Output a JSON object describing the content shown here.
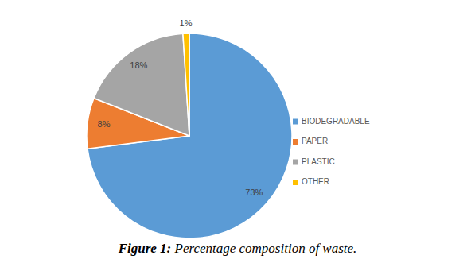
{
  "chart_data": {
    "type": "pie",
    "categories": [
      "BIODEGRADABLE",
      "PAPER",
      "PLASTIC",
      "OTHER"
    ],
    "values": [
      73,
      8,
      18,
      1
    ],
    "value_labels": [
      "73%",
      "8%",
      "18%",
      "1%"
    ],
    "colors": [
      "#5b9bd5",
      "#ed7d31",
      "#a5a5a5",
      "#ffc000"
    ],
    "data_labels": true,
    "legend": "right"
  },
  "caption": {
    "label": "Figure 1:",
    "text": "Percentage composition of waste."
  }
}
